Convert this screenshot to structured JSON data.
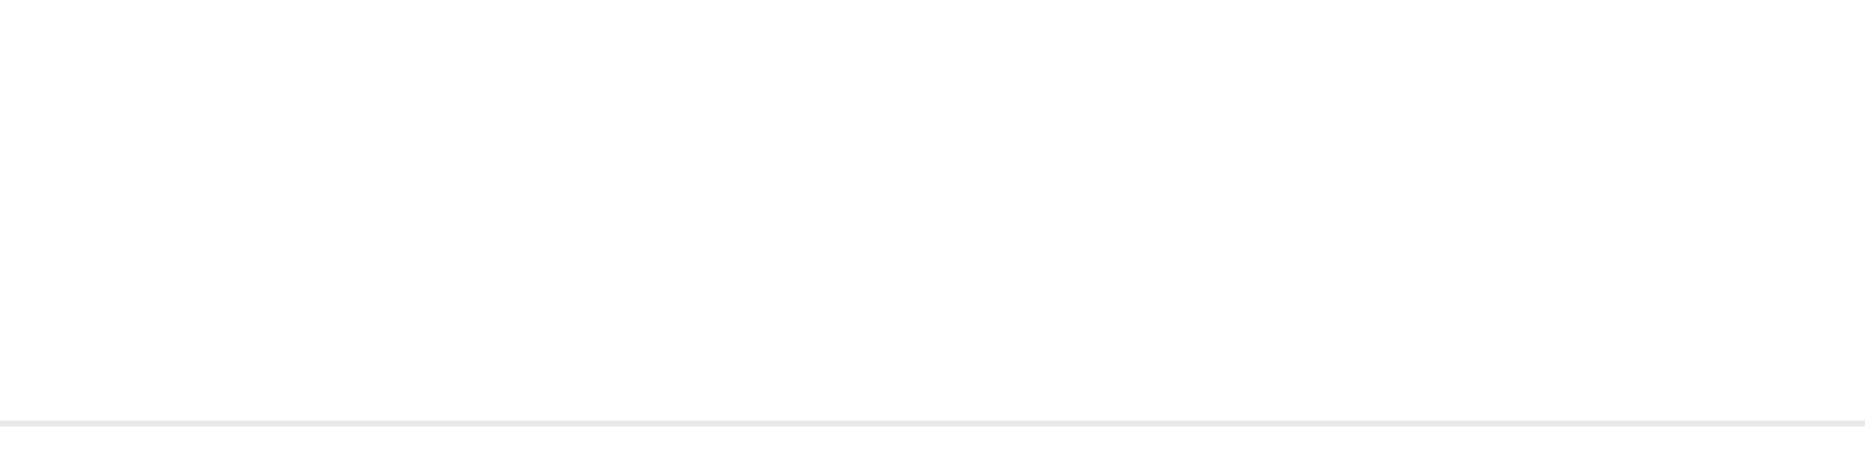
{
  "page": {
    "background_color": "#ffffff",
    "divider_color": "#e9e9e9"
  }
}
